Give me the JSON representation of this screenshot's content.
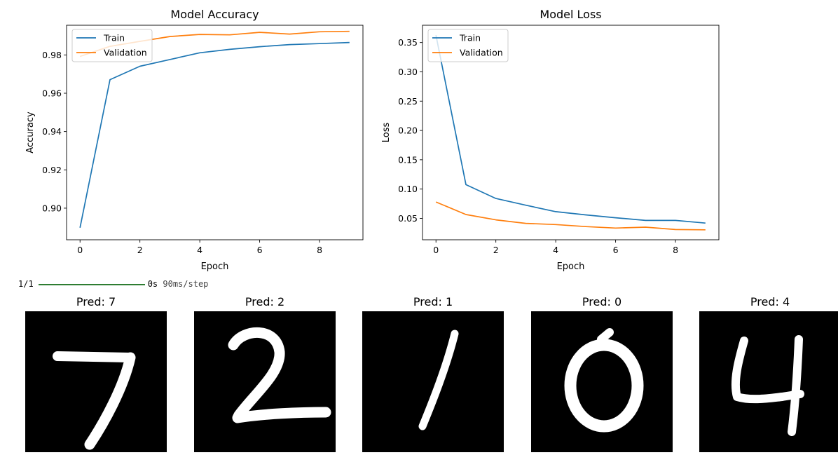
{
  "chart_data": [
    {
      "type": "line",
      "title": "Model Accuracy",
      "xlabel": "Epoch",
      "ylabel": "Accuracy",
      "x": [
        0,
        1,
        2,
        3,
        4,
        5,
        6,
        7,
        8,
        9
      ],
      "xlim": [
        -0.45,
        9.45
      ],
      "ylim": [
        0.8835,
        0.9955
      ],
      "xticks": [
        "0",
        "2",
        "4",
        "6",
        "8"
      ],
      "yticks": [
        "0.90",
        "0.92",
        "0.94",
        "0.96",
        "0.98"
      ],
      "legend_position": "upper left",
      "grid": false,
      "series": [
        {
          "name": "Train",
          "color": "#1f77b4",
          "values": [
            0.8898,
            0.9671,
            0.9741,
            0.9776,
            0.9811,
            0.9829,
            0.9843,
            0.9854,
            0.9859,
            0.9865
          ]
        },
        {
          "name": "Validation",
          "color": "#ff7f0e",
          "values": [
            0.9792,
            0.9845,
            0.9871,
            0.9896,
            0.9907,
            0.9905,
            0.9918,
            0.9909,
            0.9921,
            0.9923
          ]
        }
      ]
    },
    {
      "type": "line",
      "title": "Model Loss",
      "xlabel": "Epoch",
      "ylabel": "Loss",
      "x": [
        0,
        1,
        2,
        3,
        4,
        5,
        6,
        7,
        8,
        9
      ],
      "xlim": [
        -0.45,
        9.45
      ],
      "ylim": [
        0.0135,
        0.3795
      ],
      "xticks": [
        "0",
        "2",
        "4",
        "6",
        "8"
      ],
      "yticks": [
        "0.05",
        "0.10",
        "0.15",
        "0.20",
        "0.25",
        "0.30",
        "0.35"
      ],
      "legend_position": "upper left",
      "grid": false,
      "series": [
        {
          "name": "Train",
          "color": "#1f77b4",
          "values": [
            0.3625,
            0.1075,
            0.084,
            0.0725,
            0.0615,
            0.056,
            0.051,
            0.0465,
            0.0465,
            0.042
          ]
        },
        {
          "name": "Validation",
          "color": "#ff7f0e",
          "values": [
            0.078,
            0.0565,
            0.0475,
            0.0415,
            0.0395,
            0.036,
            0.0335,
            0.035,
            0.031,
            0.0305
          ]
        }
      ]
    }
  ],
  "progress": {
    "step_text": "1/1",
    "time_text": "0s",
    "rate_text": "90ms/step",
    "bar_color": "#2e7d32",
    "fraction": 1.0
  },
  "predictions": [
    {
      "title": "Pred: 7"
    },
    {
      "title": "Pred: 2"
    },
    {
      "title": "Pred: 1"
    },
    {
      "title": "Pred: 0"
    },
    {
      "title": "Pred: 4"
    }
  ]
}
